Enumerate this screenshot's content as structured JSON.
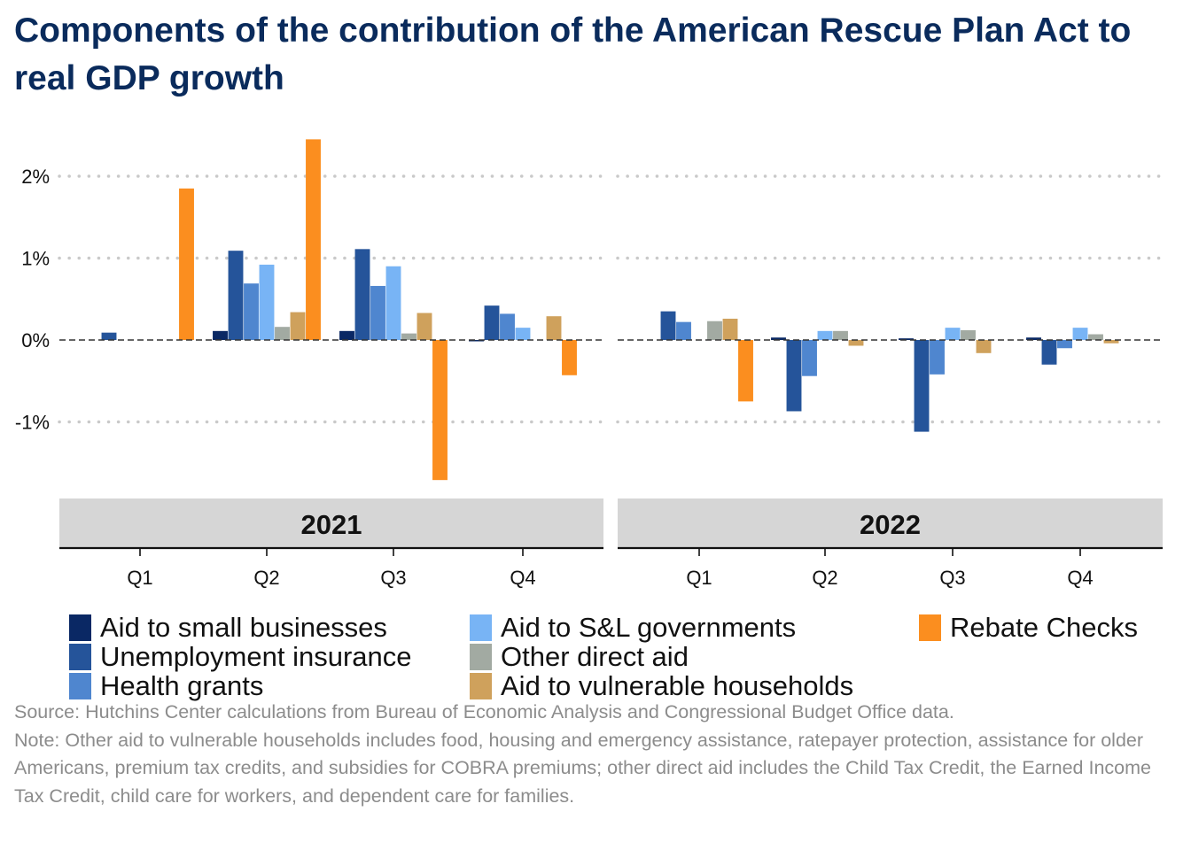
{
  "chart_data": {
    "type": "bar",
    "title": "Components of the contribution of the American Rescue Plan Act to real GDP growth",
    "ylim": [
      -1.75,
      2.55
    ],
    "y_ticks": [
      {
        "value": 2,
        "label": "2%"
      },
      {
        "value": 1,
        "label": "1%"
      },
      {
        "value": 0,
        "label": "0%"
      },
      {
        "value": -1,
        "label": "-1%"
      }
    ],
    "grid": "dotted horizontal",
    "legend_position": "bottom",
    "facets": [
      {
        "label": "2021",
        "categories": [
          "Q1",
          "Q2",
          "Q3",
          "Q4"
        ]
      },
      {
        "label": "2022",
        "categories": [
          "Q1",
          "Q2",
          "Q3",
          "Q4"
        ]
      }
    ],
    "series": [
      {
        "name": "Aid to small businesses",
        "color": "#0a2864",
        "values": [
          [
            0.0,
            0.11,
            0.11,
            -0.01
          ],
          [
            0.0,
            0.03,
            0.02,
            0.03
          ]
        ]
      },
      {
        "name": "Unemployment insurance",
        "color": "#25549a",
        "values": [
          [
            0.09,
            1.09,
            1.11,
            0.42
          ],
          [
            0.35,
            -0.87,
            -1.12,
            -0.3
          ]
        ]
      },
      {
        "name": "Health grants",
        "color": "#4f86cf",
        "values": [
          [
            0.0,
            0.69,
            0.66,
            0.32
          ],
          [
            0.22,
            -0.44,
            -0.42,
            -0.1
          ]
        ]
      },
      {
        "name": "Aid to S&L governments",
        "color": "#78b4f5",
        "values": [
          [
            0.0,
            0.92,
            0.9,
            0.15
          ],
          [
            0.0,
            0.11,
            0.15,
            0.15
          ]
        ]
      },
      {
        "name": "Other direct aid",
        "color": "#a2aaa2",
        "values": [
          [
            0.0,
            0.16,
            0.08,
            0.0
          ],
          [
            0.23,
            0.11,
            0.12,
            0.07
          ]
        ]
      },
      {
        "name": "Aid to vulnerable households",
        "color": "#cfa15c",
        "values": [
          [
            0.0,
            0.34,
            0.33,
            0.29
          ],
          [
            0.26,
            -0.07,
            -0.16,
            -0.04
          ]
        ]
      },
      {
        "name": "Rebate Checks",
        "color": "#fb8e1f",
        "values": [
          [
            1.85,
            2.45,
            -1.71,
            -0.43
          ],
          [
            -0.75,
            0.0,
            0.0,
            0.0
          ]
        ]
      }
    ]
  },
  "footnote": {
    "source": "Source: Hutchins Center calculations from Bureau of Economic Analysis and Congressional Budget Office data.",
    "note": "Note: Other aid to vulnerable households includes food, housing and emergency assistance, ratepayer protection, assistance for older Americans, premium tax credits, and subsidies for COBRA premiums; other direct aid includes the Child Tax Credit, the Earned Income Tax Credit, child care for workers, and dependent care for families."
  }
}
